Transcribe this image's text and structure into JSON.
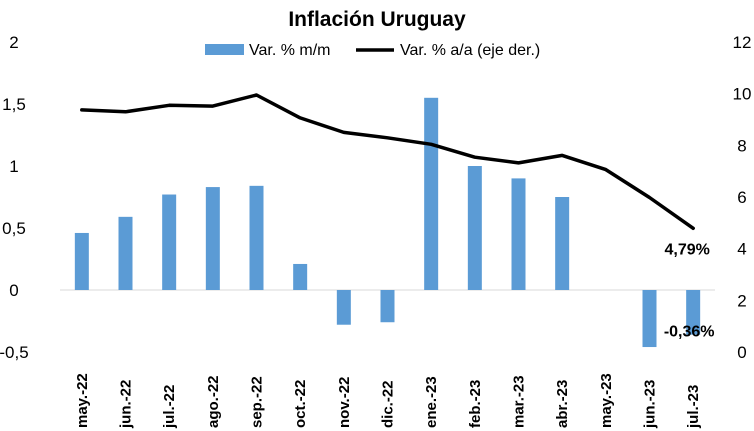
{
  "chart_data": {
    "type": "bar+line",
    "title": "Inflación Uruguay",
    "categories": [
      "may.-22",
      "jun.-22",
      "jul.-22",
      "ago.-22",
      "sep.-22",
      "oct.-22",
      "nov.-22",
      "dic.-22",
      "ene.-23",
      "feb.-23",
      "mar.-23",
      "abr.-23",
      "may.-23",
      "jun.-23",
      "jul.-23"
    ],
    "series": [
      {
        "name": "Var. % m/m",
        "type": "bar",
        "axis": "left",
        "values": [
          0.46,
          0.59,
          0.77,
          0.83,
          0.84,
          0.21,
          -0.28,
          -0.26,
          1.55,
          1.0,
          0.9,
          0.75,
          null,
          -0.46,
          -0.36
        ],
        "color": "#5b9bd5"
      },
      {
        "name": "Var. % a/a (eje der.)",
        "type": "line",
        "axis": "right",
        "values": [
          9.37,
          9.3,
          9.55,
          9.52,
          9.95,
          9.06,
          8.5,
          8.29,
          8.04,
          7.54,
          7.32,
          7.61,
          7.06,
          5.98,
          4.79
        ],
        "color": "#000000"
      }
    ],
    "y_left": {
      "min": -0.5,
      "max": 2,
      "ticks": [
        -0.5,
        0,
        0.5,
        1,
        1.5,
        2
      ],
      "tick_labels": [
        "-0,5",
        "0",
        "0,5",
        "1",
        "1,5",
        "2"
      ]
    },
    "y_right": {
      "min": 0,
      "max": 12,
      "ticks": [
        0,
        2,
        4,
        6,
        8,
        10,
        12
      ],
      "tick_labels": [
        "0",
        "2",
        "4",
        "6",
        "8",
        "10",
        "12"
      ]
    },
    "data_labels": [
      {
        "series": "Var. % a/a (eje der.)",
        "category": "jul.-23",
        "text": "4,79%"
      },
      {
        "series": "Var. % m/m",
        "category": "jul.-23",
        "text": "-0,36%"
      }
    ],
    "legend": "top",
    "grid": false
  }
}
